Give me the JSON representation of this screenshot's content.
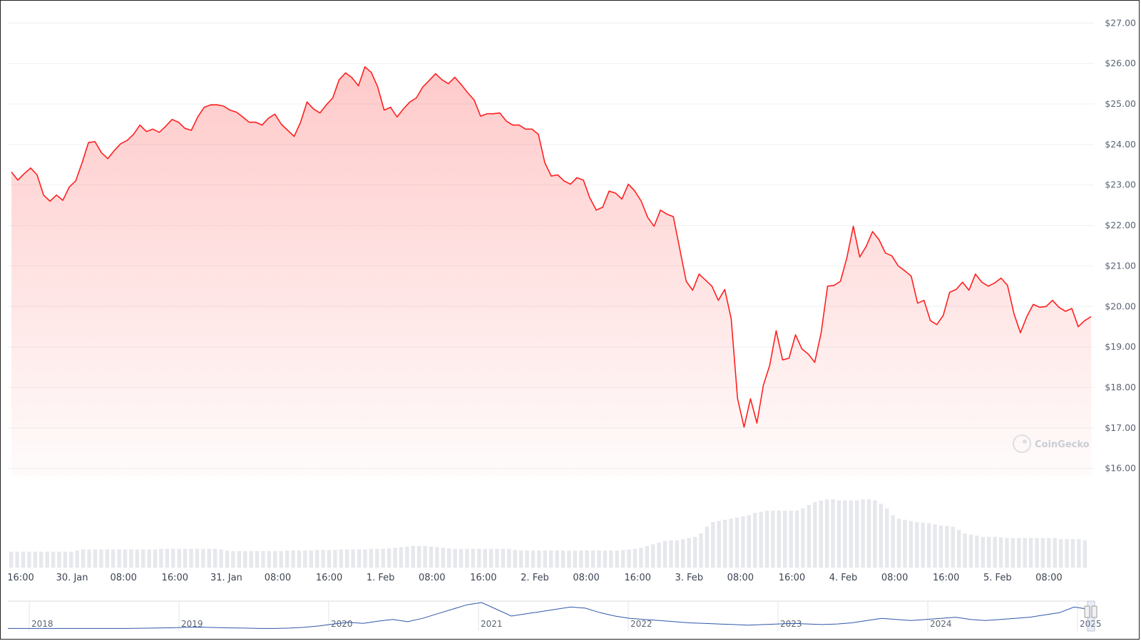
{
  "chart_data": {
    "type": "area",
    "title": "",
    "xlabel": "",
    "ylabel": "",
    "currency": "$",
    "ylim": [
      15.8,
      27.2
    ],
    "y_ticks": [
      "$16.00",
      "$17.00",
      "$18.00",
      "$19.00",
      "$20.00",
      "$21.00",
      "$22.00",
      "$23.00",
      "$24.00",
      "$25.00",
      "$26.00",
      "$27.00"
    ],
    "x_ticks": [
      "16:00",
      "30. Jan",
      "08:00",
      "16:00",
      "31. Jan",
      "08:00",
      "16:00",
      "1. Feb",
      "08:00",
      "16:00",
      "2. Feb",
      "08:00",
      "16:00",
      "3. Feb",
      "08:00",
      "16:00",
      "4. Feb",
      "08:00",
      "16:00",
      "5. Feb",
      "08:00"
    ],
    "x_range_hours": [
      0,
      168
    ],
    "grid": true,
    "series": [
      {
        "color": "#ff1f1f",
        "fill_color": "#ff5a5a",
        "prices": [
          23.32,
          23.12,
          23.28,
          23.42,
          23.25,
          22.75,
          22.6,
          22.75,
          22.62,
          22.95,
          23.1,
          23.55,
          24.05,
          24.07,
          23.8,
          23.65,
          23.85,
          24.02,
          24.1,
          24.25,
          24.48,
          24.32,
          24.38,
          24.3,
          24.45,
          24.62,
          24.55,
          24.4,
          24.35,
          24.68,
          24.92,
          24.98,
          24.98,
          24.95,
          24.85,
          24.8,
          24.68,
          24.55,
          24.55,
          24.48,
          24.65,
          24.75,
          24.5,
          24.35,
          24.2,
          24.55,
          25.05,
          24.88,
          24.78,
          24.98,
          25.15,
          25.6,
          25.77,
          25.65,
          25.45,
          25.92,
          25.78,
          25.42,
          24.85,
          24.92,
          24.68,
          24.88,
          25.05,
          25.15,
          25.42,
          25.58,
          25.75,
          25.6,
          25.5,
          25.66,
          25.48,
          25.28,
          25.1,
          24.7,
          24.76,
          24.76,
          24.78,
          24.58,
          24.48,
          24.48,
          24.38,
          24.38,
          24.25,
          23.55,
          23.22,
          23.25,
          23.1,
          23.02,
          23.18,
          23.12,
          22.68,
          22.38,
          22.45,
          22.85,
          22.8,
          22.65,
          23.02,
          22.85,
          22.6,
          22.2,
          21.98,
          22.38,
          22.28,
          22.22,
          21.42,
          20.62,
          20.4,
          20.8,
          20.65,
          20.5,
          20.15,
          20.42,
          19.7,
          17.72,
          17.02,
          17.72,
          17.12,
          18.05,
          18.55,
          19.4,
          18.68,
          18.72,
          19.3,
          18.95,
          18.82,
          18.62,
          19.35,
          20.5,
          20.52,
          20.62,
          21.2,
          21.98,
          21.22,
          21.48,
          21.85,
          21.65,
          21.32,
          21.25,
          21.0,
          20.88,
          20.75,
          20.08,
          20.15,
          19.65,
          19.55,
          19.78,
          20.35,
          20.42,
          20.6,
          20.4,
          20.8,
          20.6,
          20.5,
          20.58,
          20.7,
          20.52,
          19.82,
          19.35,
          19.75,
          20.05,
          19.98,
          20.0,
          20.15,
          19.98,
          19.88,
          19.95,
          19.5,
          19.65,
          19.75
        ]
      }
    ],
    "volume": {
      "color": "#e6e8ec",
      "values": [
        28,
        28,
        28,
        28,
        28,
        28,
        28,
        28,
        28,
        28,
        28,
        30,
        32,
        32,
        32,
        32,
        32,
        32,
        32,
        32,
        32,
        32,
        32,
        32,
        32,
        33,
        33,
        33,
        33,
        33,
        33,
        33,
        33,
        33,
        33,
        32,
        30,
        29,
        29,
        29,
        29,
        29,
        29,
        29,
        29,
        29,
        30,
        30,
        30,
        30,
        30,
        31,
        31,
        31,
        31,
        32,
        32,
        32,
        32,
        32,
        33,
        33,
        33,
        34,
        35,
        36,
        37,
        38,
        38,
        38,
        37,
        36,
        35,
        34,
        33,
        33,
        33,
        33,
        33,
        33,
        33,
        33,
        33,
        33,
        31,
        30,
        30,
        30,
        30,
        30,
        30,
        30,
        30,
        30,
        30,
        30,
        30,
        30,
        30,
        30,
        30,
        30,
        31,
        32,
        33,
        35,
        38,
        41,
        44,
        47,
        48,
        48,
        50,
        52,
        54,
        60,
        72,
        80,
        82,
        84,
        86,
        88,
        90,
        92,
        96,
        98,
        100,
        100,
        100,
        100,
        100,
        100,
        104,
        110,
        115,
        118,
        120,
        120,
        118,
        118,
        118,
        118,
        120,
        120,
        118,
        112,
        104,
        92,
        86,
        84,
        82,
        80,
        79,
        78,
        76,
        74,
        73,
        72,
        66,
        60,
        58,
        56,
        54,
        54,
        54,
        53,
        52,
        52,
        52,
        52,
        52,
        52,
        52,
        52,
        52,
        50,
        50,
        50,
        50,
        48
      ]
    },
    "navigator": {
      "x_ticks": [
        "2018",
        "2019",
        "2020",
        "2021",
        "2022",
        "2023",
        "2024",
        "2025"
      ],
      "color": "#2f56a9",
      "values": [
        1,
        1,
        1,
        1,
        1,
        1,
        1,
        1,
        1,
        1.2,
        1.4,
        1.6,
        2,
        2.2,
        1.8,
        1.5,
        1.3,
        1,
        1,
        1.3,
        2,
        3.2,
        5,
        6.5,
        5.5,
        7.5,
        9,
        7,
        10,
        14,
        18,
        22,
        24,
        18,
        12,
        14,
        16,
        18,
        20,
        19,
        15,
        12,
        10,
        9,
        8,
        7,
        6,
        5.5,
        5,
        4.5,
        4,
        4.5,
        5,
        5.5,
        5,
        4.5,
        5,
        6,
        8,
        10,
        9,
        8,
        9,
        10,
        11,
        9,
        8,
        9,
        10,
        11,
        13,
        15,
        20,
        18
      ]
    },
    "watermark": "CoinGecko"
  }
}
